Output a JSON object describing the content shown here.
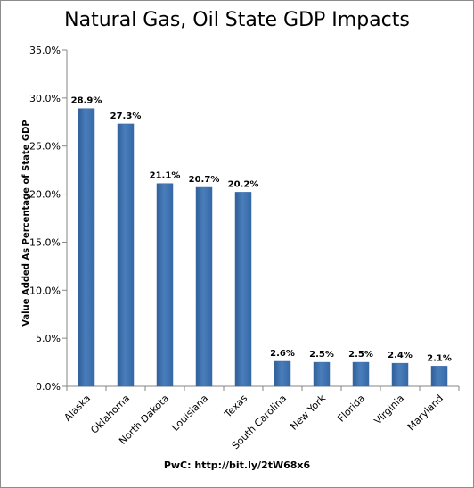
{
  "chart_data": {
    "type": "bar",
    "title": "Natural Gas, Oil State GDP Impacts",
    "ylabel": "Value Added As Percentage of State GDP",
    "xlabel": "",
    "source": "PwC: http://bit.ly/2tW68x6",
    "categories": [
      "Alaska",
      "Oklahoma",
      "North Dakota",
      "Louisiana",
      "Texas",
      "South Carolina",
      "New York",
      "Florida",
      "Virginia",
      "Maryland"
    ],
    "values": [
      28.9,
      27.3,
      21.1,
      20.7,
      20.2,
      2.6,
      2.5,
      2.5,
      2.4,
      2.1
    ],
    "data_labels": [
      "28.9%",
      "27.3%",
      "21.1%",
      "20.7%",
      "20.2%",
      "2.6%",
      "2.5%",
      "2.5%",
      "2.4%",
      "2.1%"
    ],
    "ylim": [
      0,
      35
    ],
    "yticks": [
      0,
      5,
      10,
      15,
      20,
      25,
      30,
      35
    ],
    "ytick_labels": [
      "0.0%",
      "5.0%",
      "10.0%",
      "15.0%",
      "20.0%",
      "25.0%",
      "30.0%",
      "35.0%"
    ],
    "grid": false,
    "legend": "none",
    "bar_color": "#4a7ebb"
  }
}
